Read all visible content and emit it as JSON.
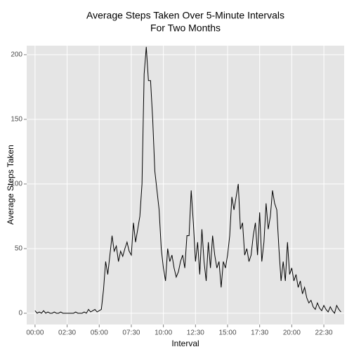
{
  "chart_data": {
    "type": "line",
    "title": [
      "Average Steps Taken Over 5-Minute Intervals",
      "For Two Months"
    ],
    "xlabel": "Interval",
    "ylabel": "Average Steps Taken",
    "x": [
      0,
      10,
      20,
      30,
      40,
      50,
      60,
      70,
      80,
      90,
      100,
      110,
      120,
      130,
      140,
      150,
      160,
      170,
      180,
      190,
      200,
      210,
      220,
      230,
      240,
      250,
      260,
      270,
      280,
      290,
      300,
      310,
      320,
      330,
      340,
      350,
      360,
      370,
      380,
      390,
      400,
      410,
      420,
      430,
      440,
      450,
      460,
      470,
      480,
      490,
      500,
      510,
      520,
      530,
      540,
      550,
      560,
      570,
      580,
      590,
      600,
      610,
      620,
      630,
      640,
      650,
      660,
      670,
      680,
      690,
      700,
      710,
      720,
      730,
      740,
      750,
      760,
      770,
      780,
      790,
      800,
      810,
      820,
      830,
      840,
      850,
      860,
      870,
      880,
      890,
      900,
      910,
      920,
      930,
      940,
      950,
      960,
      970,
      980,
      990,
      1000,
      1010,
      1020,
      1030,
      1040,
      1050,
      1060,
      1070,
      1080,
      1090,
      1100,
      1110,
      1120,
      1130,
      1140,
      1150,
      1160,
      1170,
      1180,
      1190,
      1200,
      1210,
      1220,
      1230,
      1240,
      1250,
      1260,
      1270,
      1280,
      1290,
      1300,
      1310,
      1320,
      1330,
      1340,
      1350,
      1360,
      1370,
      1380,
      1390,
      1400,
      1410,
      1420,
      1430
    ],
    "series": [
      {
        "color": "#000000",
        "values": [
          2,
          0,
          1,
          0,
          2,
          0,
          1,
          0,
          0,
          1,
          0,
          0,
          1,
          0,
          0,
          0,
          0,
          0,
          0,
          1,
          0,
          0,
          0,
          1,
          0,
          3,
          1,
          2,
          3,
          1,
          2,
          3,
          18,
          40,
          30,
          45,
          60,
          48,
          52,
          40,
          48,
          44,
          50,
          55,
          48,
          45,
          70,
          55,
          65,
          75,
          100,
          185,
          206,
          180,
          180,
          150,
          110,
          95,
          80,
          50,
          35,
          25,
          50,
          40,
          45,
          35,
          28,
          32,
          40,
          45,
          35,
          60,
          60,
          95,
          70,
          40,
          55,
          30,
          65,
          40,
          25,
          55,
          35,
          60,
          45,
          35,
          40,
          20,
          40,
          35,
          45,
          60,
          90,
          80,
          90,
          100,
          65,
          70,
          45,
          50,
          40,
          45,
          60,
          70,
          45,
          78,
          40,
          55,
          85,
          65,
          75,
          95,
          85,
          80,
          50,
          25,
          40,
          25,
          55,
          30,
          35,
          25,
          30,
          20,
          25,
          15,
          20,
          12,
          8,
          10,
          5,
          3,
          8,
          4,
          2,
          6,
          3,
          1,
          5,
          2,
          0,
          6,
          3,
          1
        ]
      }
    ],
    "xlim": [
      -39,
      1445
    ],
    "xticks": [
      {
        "value": 0,
        "label": "00:00"
      },
      {
        "value": 150,
        "label": "02:30"
      },
      {
        "value": 300,
        "label": "05:00"
      },
      {
        "value": 450,
        "label": "07:30"
      },
      {
        "value": 600,
        "label": "10:00"
      },
      {
        "value": 750,
        "label": "12:30"
      },
      {
        "value": 900,
        "label": "15:00"
      },
      {
        "value": 1050,
        "label": "17:30"
      },
      {
        "value": 1200,
        "label": "20:00"
      },
      {
        "value": 1350,
        "label": "22:30"
      }
    ],
    "ylim": [
      -8.7,
      207
    ],
    "yticks": [
      0,
      50,
      100,
      150,
      200
    ],
    "grid": true
  }
}
